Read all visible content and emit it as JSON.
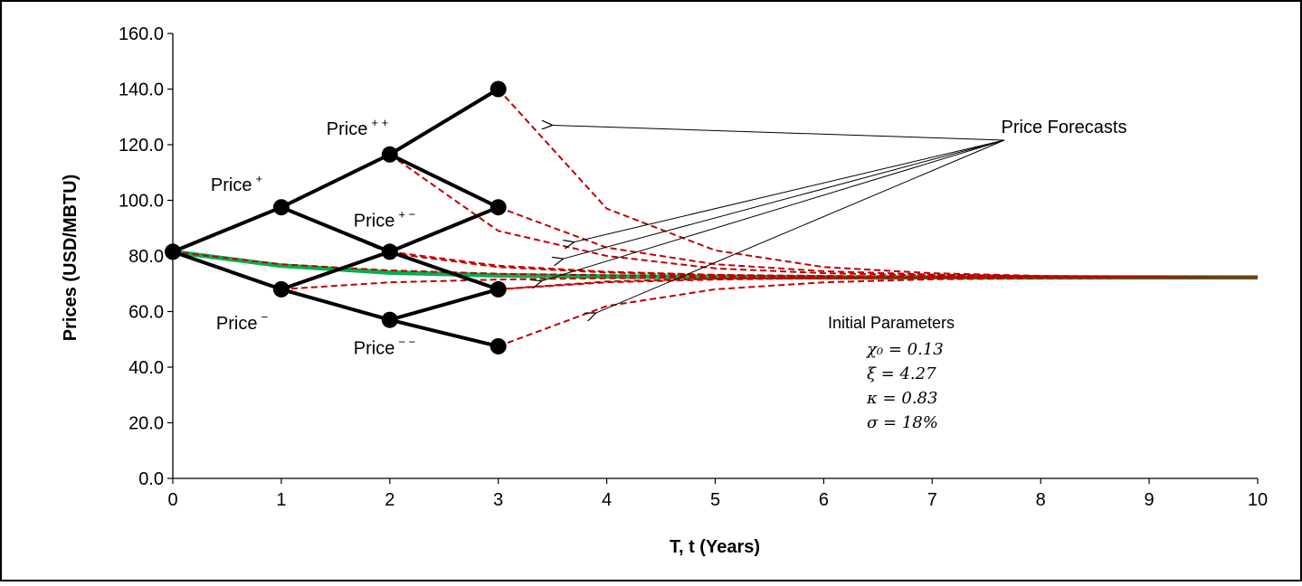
{
  "chart_data": {
    "type": "line",
    "xlabel": "T, t (Years)",
    "ylabel": "Prices (USD/MBTU)",
    "xlim": [
      0,
      10
    ],
    "ylim": [
      0,
      160
    ],
    "x_ticks": [
      "0",
      "1",
      "2",
      "3",
      "4",
      "5",
      "6",
      "7",
      "8",
      "9",
      "10"
    ],
    "y_ticks": [
      "0.0",
      "20.0",
      "40.0",
      "60.0",
      "80.0",
      "100.0",
      "120.0",
      "140.0",
      "160.0"
    ],
    "grid": false,
    "tree_nodes": [
      {
        "id": "n0",
        "t": 0,
        "price": 81.5
      },
      {
        "id": "u1",
        "t": 1,
        "price": 97.5
      },
      {
        "id": "d1",
        "t": 1,
        "price": 68.0
      },
      {
        "id": "uu2",
        "t": 2,
        "price": 116.5
      },
      {
        "id": "ud2",
        "t": 2,
        "price": 81.5
      },
      {
        "id": "dd2",
        "t": 2,
        "price": 57.0
      },
      {
        "id": "uuu3",
        "t": 3,
        "price": 140.0
      },
      {
        "id": "uud3",
        "t": 3,
        "price": 97.5
      },
      {
        "id": "udd3",
        "t": 3,
        "price": 68.0
      },
      {
        "id": "ddd3",
        "t": 3,
        "price": 47.5
      }
    ],
    "tree_edges": [
      [
        "n0",
        "u1"
      ],
      [
        "n0",
        "d1"
      ],
      [
        "u1",
        "uu2"
      ],
      [
        "u1",
        "ud2"
      ],
      [
        "d1",
        "ud2"
      ],
      [
        "d1",
        "dd2"
      ],
      [
        "uu2",
        "uuu3"
      ],
      [
        "uu2",
        "uud3"
      ],
      [
        "ud2",
        "uud3"
      ],
      [
        "ud2",
        "udd3"
      ],
      [
        "dd2",
        "udd3"
      ],
      [
        "dd2",
        "ddd3"
      ]
    ],
    "series": [
      {
        "style": "green-solid",
        "x": [
          0,
          1,
          2,
          3,
          4,
          5,
          6,
          7,
          8,
          9,
          10
        ],
        "y": [
          81.5,
          76.5,
          74.0,
          73.0,
          72.6,
          72.4,
          72.3,
          72.3,
          72.3,
          72.3,
          72.3
        ]
      },
      {
        "style": "red-dashed",
        "x": [
          3,
          4,
          5,
          6,
          7,
          8,
          9,
          10
        ],
        "y": [
          140.0,
          97.0,
          82.0,
          76.0,
          73.8,
          72.8,
          72.5,
          72.3
        ]
      },
      {
        "style": "red-dashed",
        "x": [
          3,
          4,
          5,
          6,
          7,
          8,
          9,
          10
        ],
        "y": [
          97.5,
          83.0,
          77.0,
          74.5,
          73.3,
          72.7,
          72.4,
          72.3
        ]
      },
      {
        "style": "red-dashed",
        "x": [
          3,
          4,
          5,
          6,
          7,
          8,
          9,
          10
        ],
        "y": [
          68.0,
          70.5,
          71.5,
          72.0,
          72.2,
          72.3,
          72.3,
          72.3
        ]
      },
      {
        "style": "red-dashed",
        "x": [
          3,
          4,
          5,
          6,
          7,
          8,
          9,
          10
        ],
        "y": [
          47.5,
          62.0,
          68.0,
          70.5,
          71.6,
          72.0,
          72.2,
          72.3
        ]
      },
      {
        "style": "red-dashed",
        "x": [
          2,
          3,
          4,
          5,
          6,
          7,
          8,
          9,
          10
        ],
        "y": [
          116.5,
          89.0,
          80.0,
          75.5,
          73.8,
          73.0,
          72.6,
          72.4,
          72.3
        ]
      },
      {
        "style": "red-dashed",
        "x": [
          2,
          3,
          4,
          5,
          6,
          7,
          8,
          9,
          10
        ],
        "y": [
          81.5,
          76.5,
          74.3,
          73.2,
          72.8,
          72.5,
          72.4,
          72.3,
          72.3
        ]
      },
      {
        "style": "red-dashed",
        "x": [
          2,
          3,
          4,
          5,
          6,
          7,
          8,
          9,
          10
        ],
        "y": [
          57.0,
          68.0,
          70.8,
          71.8,
          72.1,
          72.2,
          72.3,
          72.3,
          72.3
        ]
      },
      {
        "style": "red-dashed",
        "x": [
          1,
          2,
          3,
          4,
          5,
          6,
          7,
          8,
          9,
          10
        ],
        "y": [
          97.5,
          81.0,
          76.0,
          74.0,
          73.1,
          72.7,
          72.5,
          72.4,
          72.3,
          72.3
        ]
      },
      {
        "style": "red-dashed",
        "x": [
          1,
          2,
          3,
          4,
          5,
          6,
          7,
          8,
          9,
          10
        ],
        "y": [
          68.0,
          70.5,
          71.5,
          72.0,
          72.2,
          72.3,
          72.3,
          72.3,
          72.3,
          72.3
        ]
      },
      {
        "style": "red-dashed",
        "x": [
          0,
          1,
          2,
          3,
          4,
          5,
          6,
          7,
          8,
          9,
          10
        ],
        "y": [
          81.5,
          77.0,
          74.8,
          73.6,
          73.0,
          72.7,
          72.5,
          72.4,
          72.3,
          72.3,
          72.3
        ]
      }
    ],
    "node_labels": [
      {
        "base": "Price",
        "sup": "+",
        "t": 1,
        "price": 97.5
      },
      {
        "base": "Price",
        "sup": "+ +",
        "t": 2,
        "price": 116.5
      },
      {
        "base": "Price",
        "sup": "+ −",
        "t": 2,
        "price": 81.5
      },
      {
        "base": "Price",
        "sup": "−",
        "t": 1,
        "price": 68.0
      },
      {
        "base": "Price",
        "sup": "− −",
        "t": 2,
        "price": 57.0
      }
    ],
    "annotation": {
      "text": "Price Forecasts",
      "arrow_targets": [
        {
          "t": 3.5,
          "price": 127.0
        },
        {
          "t": 3.7,
          "price": 85.0
        },
        {
          "t": 3.6,
          "price": 79.0
        },
        {
          "t": 3.4,
          "price": 71.0
        },
        {
          "t": 3.9,
          "price": 59.5
        }
      ]
    },
    "parameters": {
      "title": "Initial Parameters",
      "lines": [
        "χ₀ = 0.13",
        "ξ = 4.27",
        "κ = 0.83",
        "σ = 18%"
      ]
    },
    "colors": {
      "tree": "#000000",
      "base": "#00b050",
      "forecast": "#c00000"
    }
  }
}
